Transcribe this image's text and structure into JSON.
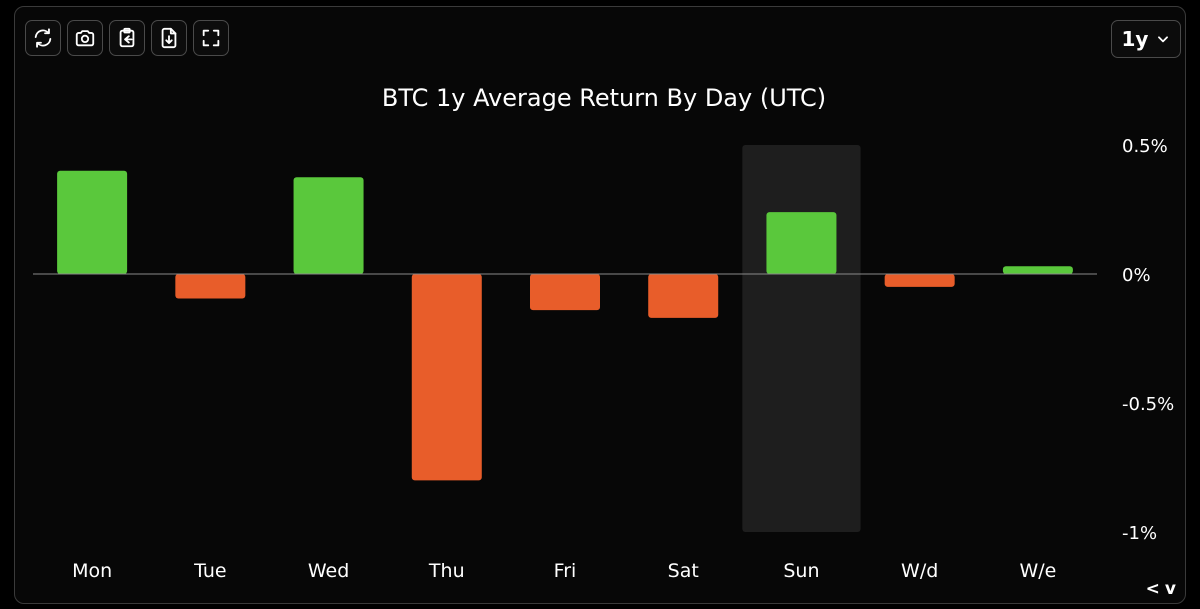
{
  "toolbar": {
    "buttons": [
      {
        "icon": "refresh-icon"
      },
      {
        "icon": "camera-icon"
      },
      {
        "icon": "clipboard-icon"
      },
      {
        "icon": "download-icon"
      },
      {
        "icon": "fullscreen-icon"
      }
    ]
  },
  "range_selector": {
    "value": "1y"
  },
  "nav": {
    "prev": "<",
    "next": "v"
  },
  "chart_data": {
    "type": "bar",
    "title": "BTC 1y Average Return By Day (UTC)",
    "categories": [
      "Mon",
      "Tue",
      "Wed",
      "Thu",
      "Fri",
      "Sat",
      "Sun",
      "W/d",
      "W/e"
    ],
    "values": [
      0.4,
      -0.095,
      0.375,
      -0.8,
      -0.14,
      -0.17,
      0.24,
      -0.05,
      0.03
    ],
    "ylim": [
      -1,
      0.5
    ],
    "yticks": [
      0.5,
      0,
      -0.5,
      -1
    ],
    "ytick_labels": [
      "0.5%",
      "0%",
      "-0.5%",
      "-1%"
    ],
    "highlighted_category": "Sun",
    "colors": {
      "positive": "#5ac83c",
      "negative": "#e85d2a",
      "highlight_band": "#1e1e1e",
      "zero_line": "#8a8a8a"
    }
  }
}
